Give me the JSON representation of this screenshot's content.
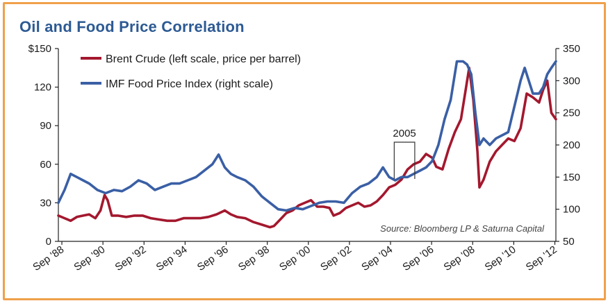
{
  "chart_data": {
    "type": "line",
    "title": "Oil and Food Price Correlation",
    "source": "Source: Bloomberg LP & Saturna Capital",
    "annotation": "2005",
    "annotation_range": [
      2004.85,
      2005.85
    ],
    "xlim": [
      1988.5,
      2012.72
    ],
    "left_axis": {
      "ylim": [
        0,
        150
      ],
      "ticks": [
        0,
        30,
        60,
        90,
        120,
        150
      ],
      "tick_labels": [
        "0",
        "30",
        "60",
        "90",
        "120",
        "$150"
      ]
    },
    "right_axis": {
      "ylim": [
        50,
        350
      ],
      "ticks": [
        50,
        100,
        150,
        200,
        250,
        300,
        350
      ],
      "tick_labels": [
        "50",
        "100",
        "150",
        "200",
        "250",
        "300",
        "350"
      ]
    },
    "x_ticks": [
      1988.67,
      1990.67,
      1992.67,
      1994.67,
      1996.67,
      1998.67,
      2000.67,
      2002.67,
      2004.67,
      2006.67,
      2008.67,
      2010.67,
      2012.67
    ],
    "x_tick_labels": [
      "Sep '88",
      "Sep '90",
      "Sep '92",
      "Sep '94",
      "Sep '96",
      "Sep '98",
      "Sep '00",
      "Sep '02",
      "Sep '04",
      "Sep '06",
      "Sep '08",
      "Sep '10",
      "Sep '12"
    ],
    "series": [
      {
        "name": "Brent Crude (left scale, price per barrel)",
        "axis": "left",
        "color": "#a3182e",
        "x": [
          1988.5,
          1988.8,
          1989.1,
          1989.4,
          1989.7,
          1990.0,
          1990.3,
          1990.55,
          1990.75,
          1990.9,
          1991.1,
          1991.4,
          1991.8,
          1992.2,
          1992.6,
          1993.0,
          1993.4,
          1993.8,
          1994.2,
          1994.6,
          1995.0,
          1995.4,
          1995.8,
          1996.2,
          1996.6,
          1996.9,
          1997.2,
          1997.6,
          1998.0,
          1998.4,
          1998.8,
          1999.0,
          1999.3,
          1999.6,
          1999.9,
          2000.2,
          2000.5,
          2000.8,
          2001.1,
          2001.4,
          2001.7,
          2001.9,
          2002.2,
          2002.5,
          2002.8,
          2003.1,
          2003.4,
          2003.7,
          2004.0,
          2004.3,
          2004.6,
          2004.9,
          2005.2,
          2005.5,
          2005.8,
          2006.1,
          2006.4,
          2006.7,
          2006.9,
          2007.2,
          2007.5,
          2007.8,
          2008.1,
          2008.35,
          2008.5,
          2008.7,
          2008.9,
          2009.0,
          2009.2,
          2009.5,
          2009.8,
          2010.1,
          2010.4,
          2010.7,
          2011.0,
          2011.3,
          2011.6,
          2011.9,
          2012.1,
          2012.3,
          2012.5,
          2012.72
        ],
        "y": [
          20,
          18,
          16,
          19,
          20,
          21,
          18,
          24,
          36,
          32,
          20,
          20,
          19,
          20,
          20,
          18,
          17,
          16,
          16,
          18,
          18,
          18,
          19,
          21,
          24,
          21,
          19,
          18,
          15,
          13,
          11,
          12,
          17,
          22,
          24,
          28,
          30,
          32,
          27,
          27,
          26,
          20,
          22,
          26,
          28,
          30,
          27,
          28,
          31,
          36,
          42,
          44,
          48,
          56,
          60,
          62,
          68,
          65,
          58,
          56,
          72,
          85,
          95,
          120,
          135,
          110,
          70,
          42,
          48,
          62,
          70,
          75,
          80,
          78,
          88,
          115,
          112,
          108,
          118,
          125,
          100,
          95
        ]
      },
      {
        "name": "IMF Food Price Index (right scale)",
        "axis": "right",
        "color": "#3a5fa5",
        "x": [
          1988.5,
          1988.8,
          1989.1,
          1989.4,
          1989.7,
          1990.0,
          1990.4,
          1990.8,
          1991.2,
          1991.6,
          1992.0,
          1992.4,
          1992.8,
          1993.2,
          1993.6,
          1994.0,
          1994.4,
          1994.8,
          1995.2,
          1995.6,
          1996.0,
          1996.3,
          1996.6,
          1996.9,
          1997.2,
          1997.6,
          1998.0,
          1998.4,
          1998.8,
          1999.2,
          1999.6,
          2000.0,
          2000.4,
          2000.8,
          2001.2,
          2001.6,
          2002.0,
          2002.4,
          2002.8,
          2003.2,
          2003.6,
          2004.0,
          2004.3,
          2004.6,
          2004.9,
          2005.2,
          2005.5,
          2005.8,
          2006.1,
          2006.4,
          2006.7,
          2007.0,
          2007.3,
          2007.6,
          2007.9,
          2008.2,
          2008.4,
          2008.6,
          2008.8,
          2009.0,
          2009.2,
          2009.5,
          2009.8,
          2010.1,
          2010.4,
          2010.7,
          2011.0,
          2011.2,
          2011.4,
          2011.6,
          2011.9,
          2012.1,
          2012.3,
          2012.5,
          2012.72
        ],
        "y": [
          110,
          130,
          155,
          150,
          145,
          140,
          130,
          125,
          130,
          128,
          135,
          145,
          140,
          130,
          135,
          140,
          140,
          145,
          150,
          160,
          170,
          185,
          165,
          155,
          150,
          145,
          135,
          120,
          110,
          100,
          98,
          102,
          100,
          105,
          110,
          112,
          112,
          110,
          125,
          135,
          140,
          150,
          165,
          150,
          145,
          150,
          150,
          155,
          160,
          165,
          175,
          200,
          240,
          270,
          330,
          330,
          325,
          310,
          250,
          200,
          210,
          200,
          210,
          215,
          220,
          260,
          300,
          320,
          300,
          280,
          280,
          290,
          310,
          320,
          330
        ]
      }
    ]
  }
}
